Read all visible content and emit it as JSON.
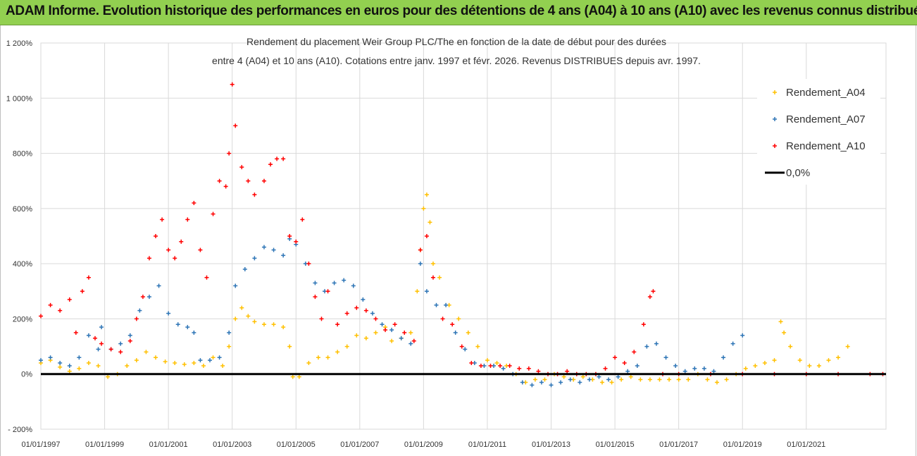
{
  "header": {
    "title": "ADAM Informe. Evolution historique des performances en euros pour des détentions de 4 ans (A04) à 10 ans (A10) avec les revenus connus distribués"
  },
  "chart_data": {
    "type": "scatter",
    "title_line1": "Rendement du placement Weir Group PLC/The en fonction de la date de début pour des durées",
    "title_line2": "entre 4 (A04) et 10 ans (A10).  Cotations entre janv. 1997 et févr. 2026. Revenus DISTRIBUES depuis avr. 1997.",
    "xlabel": "",
    "ylabel": "",
    "xlim": [
      1997.0,
      2023.5
    ],
    "ylim": [
      -200,
      1200
    ],
    "x_tick_labels": [
      "01/01/1997",
      "01/01/1999",
      "01/01/2001",
      "01/01/2003",
      "01/01/2005",
      "01/01/2007",
      "01/01/2009",
      "01/01/2011",
      "01/01/2013",
      "01/01/2015",
      "01/01/2017",
      "01/01/2019",
      "01/01/2021"
    ],
    "x_tick_values": [
      1997,
      1999,
      2001,
      2003,
      2005,
      2007,
      2009,
      2011,
      2013,
      2015,
      2017,
      2019,
      2021
    ],
    "y_tick_labels": [
      "- 200%",
      "0%",
      "200%",
      "400%",
      "600%",
      "800%",
      "1 000%",
      "1 200%"
    ],
    "y_tick_values": [
      -200,
      0,
      200,
      400,
      600,
      800,
      1000,
      1200
    ],
    "gridlines": true,
    "legend_position": "top-right",
    "series": [
      {
        "name": "Rendement_A04",
        "color": "#ffc000",
        "marker": "+",
        "x": [
          1997.0,
          1997.3,
          1997.6,
          1997.9,
          1998.2,
          1998.5,
          1998.8,
          1999.1,
          1999.4,
          1999.7,
          2000.0,
          2000.3,
          2000.6,
          2000.9,
          2001.2,
          2001.5,
          2001.8,
          2002.1,
          2002.4,
          2002.7,
          2002.9,
          2003.1,
          2003.3,
          2003.5,
          2003.7,
          2004.0,
          2004.3,
          2004.6,
          2004.8,
          2004.9,
          2005.1,
          2005.4,
          2005.7,
          2006.0,
          2006.3,
          2006.6,
          2006.9,
          2007.2,
          2007.5,
          2007.8,
          2008.0,
          2008.3,
          2008.6,
          2008.8,
          2008.9,
          2009.0,
          2009.1,
          2009.2,
          2009.3,
          2009.5,
          2009.8,
          2010.1,
          2010.4,
          2010.7,
          2011.0,
          2011.3,
          2011.6,
          2011.9,
          2012.2,
          2012.5,
          2012.8,
          2013.1,
          2013.4,
          2013.7,
          2014.0,
          2014.3,
          2014.6,
          2014.9,
          2015.2,
          2015.5,
          2015.8,
          2016.1,
          2016.4,
          2016.7,
          2017.0,
          2017.3,
          2017.6,
          2017.9,
          2018.2,
          2018.5,
          2018.8,
          2019.1,
          2019.4,
          2019.7,
          2020.0,
          2020.2,
          2020.3,
          2020.5,
          2020.8,
          2021.1,
          2021.4,
          2021.7,
          2022.0,
          2022.3
        ],
        "y": [
          40,
          50,
          25,
          10,
          20,
          40,
          30,
          -10,
          0,
          30,
          50,
          80,
          60,
          45,
          40,
          35,
          40,
          30,
          60,
          30,
          100,
          200,
          240,
          210,
          190,
          180,
          180,
          170,
          100,
          -10,
          -10,
          40,
          60,
          60,
          80,
          100,
          140,
          130,
          150,
          170,
          120,
          130,
          150,
          300,
          450,
          600,
          650,
          550,
          400,
          350,
          250,
          200,
          150,
          100,
          50,
          40,
          30,
          0,
          -30,
          -20,
          -20,
          0,
          -10,
          -20,
          -10,
          -20,
          -30,
          -30,
          -20,
          -10,
          -20,
          -20,
          -20,
          -20,
          -20,
          -20,
          0,
          -20,
          -30,
          -20,
          0,
          20,
          30,
          40,
          50,
          190,
          150,
          100,
          50,
          30,
          30,
          50,
          60,
          100
        ]
      },
      {
        "name": "Rendement_A07",
        "color": "#2e75b6",
        "marker": "+",
        "x": [
          1997.0,
          1997.3,
          1997.6,
          1997.9,
          1998.2,
          1998.5,
          1998.8,
          1998.9,
          1999.2,
          1999.5,
          1999.8,
          2000.1,
          2000.4,
          2000.7,
          2001.0,
          2001.3,
          2001.6,
          2001.8,
          2002.0,
          2002.3,
          2002.6,
          2002.9,
          2003.1,
          2003.4,
          2003.7,
          2004.0,
          2004.3,
          2004.6,
          2004.8,
          2005.0,
          2005.3,
          2005.6,
          2005.9,
          2006.2,
          2006.5,
          2006.8,
          2007.1,
          2007.4,
          2007.7,
          2008.0,
          2008.3,
          2008.6,
          2008.9,
          2009.1,
          2009.4,
          2009.7,
          2010.0,
          2010.3,
          2010.6,
          2010.9,
          2011.2,
          2011.5,
          2011.8,
          2012.1,
          2012.4,
          2012.7,
          2013.0,
          2013.3,
          2013.6,
          2013.9,
          2014.2,
          2014.5,
          2014.8,
          2015.1,
          2015.4,
          2015.7,
          2016.0,
          2016.3,
          2016.6,
          2016.9,
          2017.2,
          2017.5,
          2017.8,
          2018.1,
          2018.4,
          2018.7,
          2019.0
        ],
        "y": [
          50,
          60,
          40,
          30,
          60,
          140,
          90,
          170,
          90,
          110,
          140,
          230,
          280,
          320,
          220,
          180,
          170,
          150,
          50,
          50,
          60,
          150,
          320,
          380,
          420,
          460,
          450,
          430,
          490,
          470,
          400,
          330,
          300,
          330,
          340,
          320,
          270,
          220,
          180,
          160,
          130,
          110,
          400,
          300,
          250,
          250,
          150,
          90,
          40,
          30,
          30,
          20,
          0,
          -30,
          -40,
          -30,
          -40,
          -30,
          -20,
          -30,
          -20,
          -10,
          -20,
          -10,
          10,
          30,
          100,
          110,
          60,
          30,
          10,
          20,
          20,
          10,
          60,
          110,
          140
        ]
      },
      {
        "name": "Rendement_A10",
        "color": "#ff0000",
        "marker": "+",
        "x": [
          1997.0,
          1997.3,
          1997.6,
          1997.9,
          1998.1,
          1998.3,
          1998.5,
          1998.7,
          1998.9,
          1999.2,
          1999.5,
          1999.8,
          2000.0,
          2000.2,
          2000.4,
          2000.6,
          2000.8,
          2001.0,
          2001.2,
          2001.4,
          2001.6,
          2001.8,
          2002.0,
          2002.2,
          2002.4,
          2002.6,
          2002.8,
          2002.9,
          2003.0,
          2003.1,
          2003.3,
          2003.5,
          2003.7,
          2004.0,
          2004.2,
          2004.4,
          2004.6,
          2004.8,
          2005.0,
          2005.2,
          2005.4,
          2005.6,
          2005.8,
          2006.0,
          2006.3,
          2006.6,
          2006.9,
          2007.2,
          2007.5,
          2007.8,
          2008.1,
          2008.4,
          2008.7,
          2008.9,
          2009.1,
          2009.3,
          2009.6,
          2009.9,
          2010.2,
          2010.5,
          2010.8,
          2011.1,
          2011.4,
          2011.7,
          2012.0,
          2012.3,
          2012.6,
          2012.9,
          2013.2,
          2013.5,
          2013.8,
          2014.1,
          2014.4,
          2014.7,
          2015.0,
          2015.3,
          2015.6,
          2015.9,
          2016.1,
          2016.2,
          2016.5,
          2017.0,
          2018.0,
          2019.0,
          2020.0,
          2021.0,
          2022.0,
          2023.0,
          2023.4
        ],
        "y": [
          210,
          250,
          230,
          270,
          150,
          300,
          350,
          130,
          110,
          90,
          80,
          120,
          200,
          280,
          420,
          500,
          560,
          450,
          420,
          480,
          560,
          620,
          450,
          350,
          580,
          700,
          680,
          800,
          1050,
          900,
          750,
          700,
          650,
          700,
          760,
          780,
          780,
          500,
          480,
          560,
          400,
          280,
          200,
          300,
          180,
          220,
          240,
          230,
          200,
          160,
          180,
          150,
          120,
          450,
          500,
          350,
          200,
          180,
          100,
          40,
          30,
          30,
          30,
          30,
          20,
          20,
          10,
          0,
          0,
          10,
          0,
          0,
          0,
          20,
          60,
          40,
          80,
          180,
          280,
          300,
          0,
          0,
          0,
          0,
          0,
          0,
          0,
          0,
          0
        ]
      },
      {
        "name": "0,0%",
        "color": "#000000",
        "marker": "line",
        "x": [
          1997.0,
          2023.5
        ],
        "y": [
          0,
          0
        ]
      }
    ]
  }
}
